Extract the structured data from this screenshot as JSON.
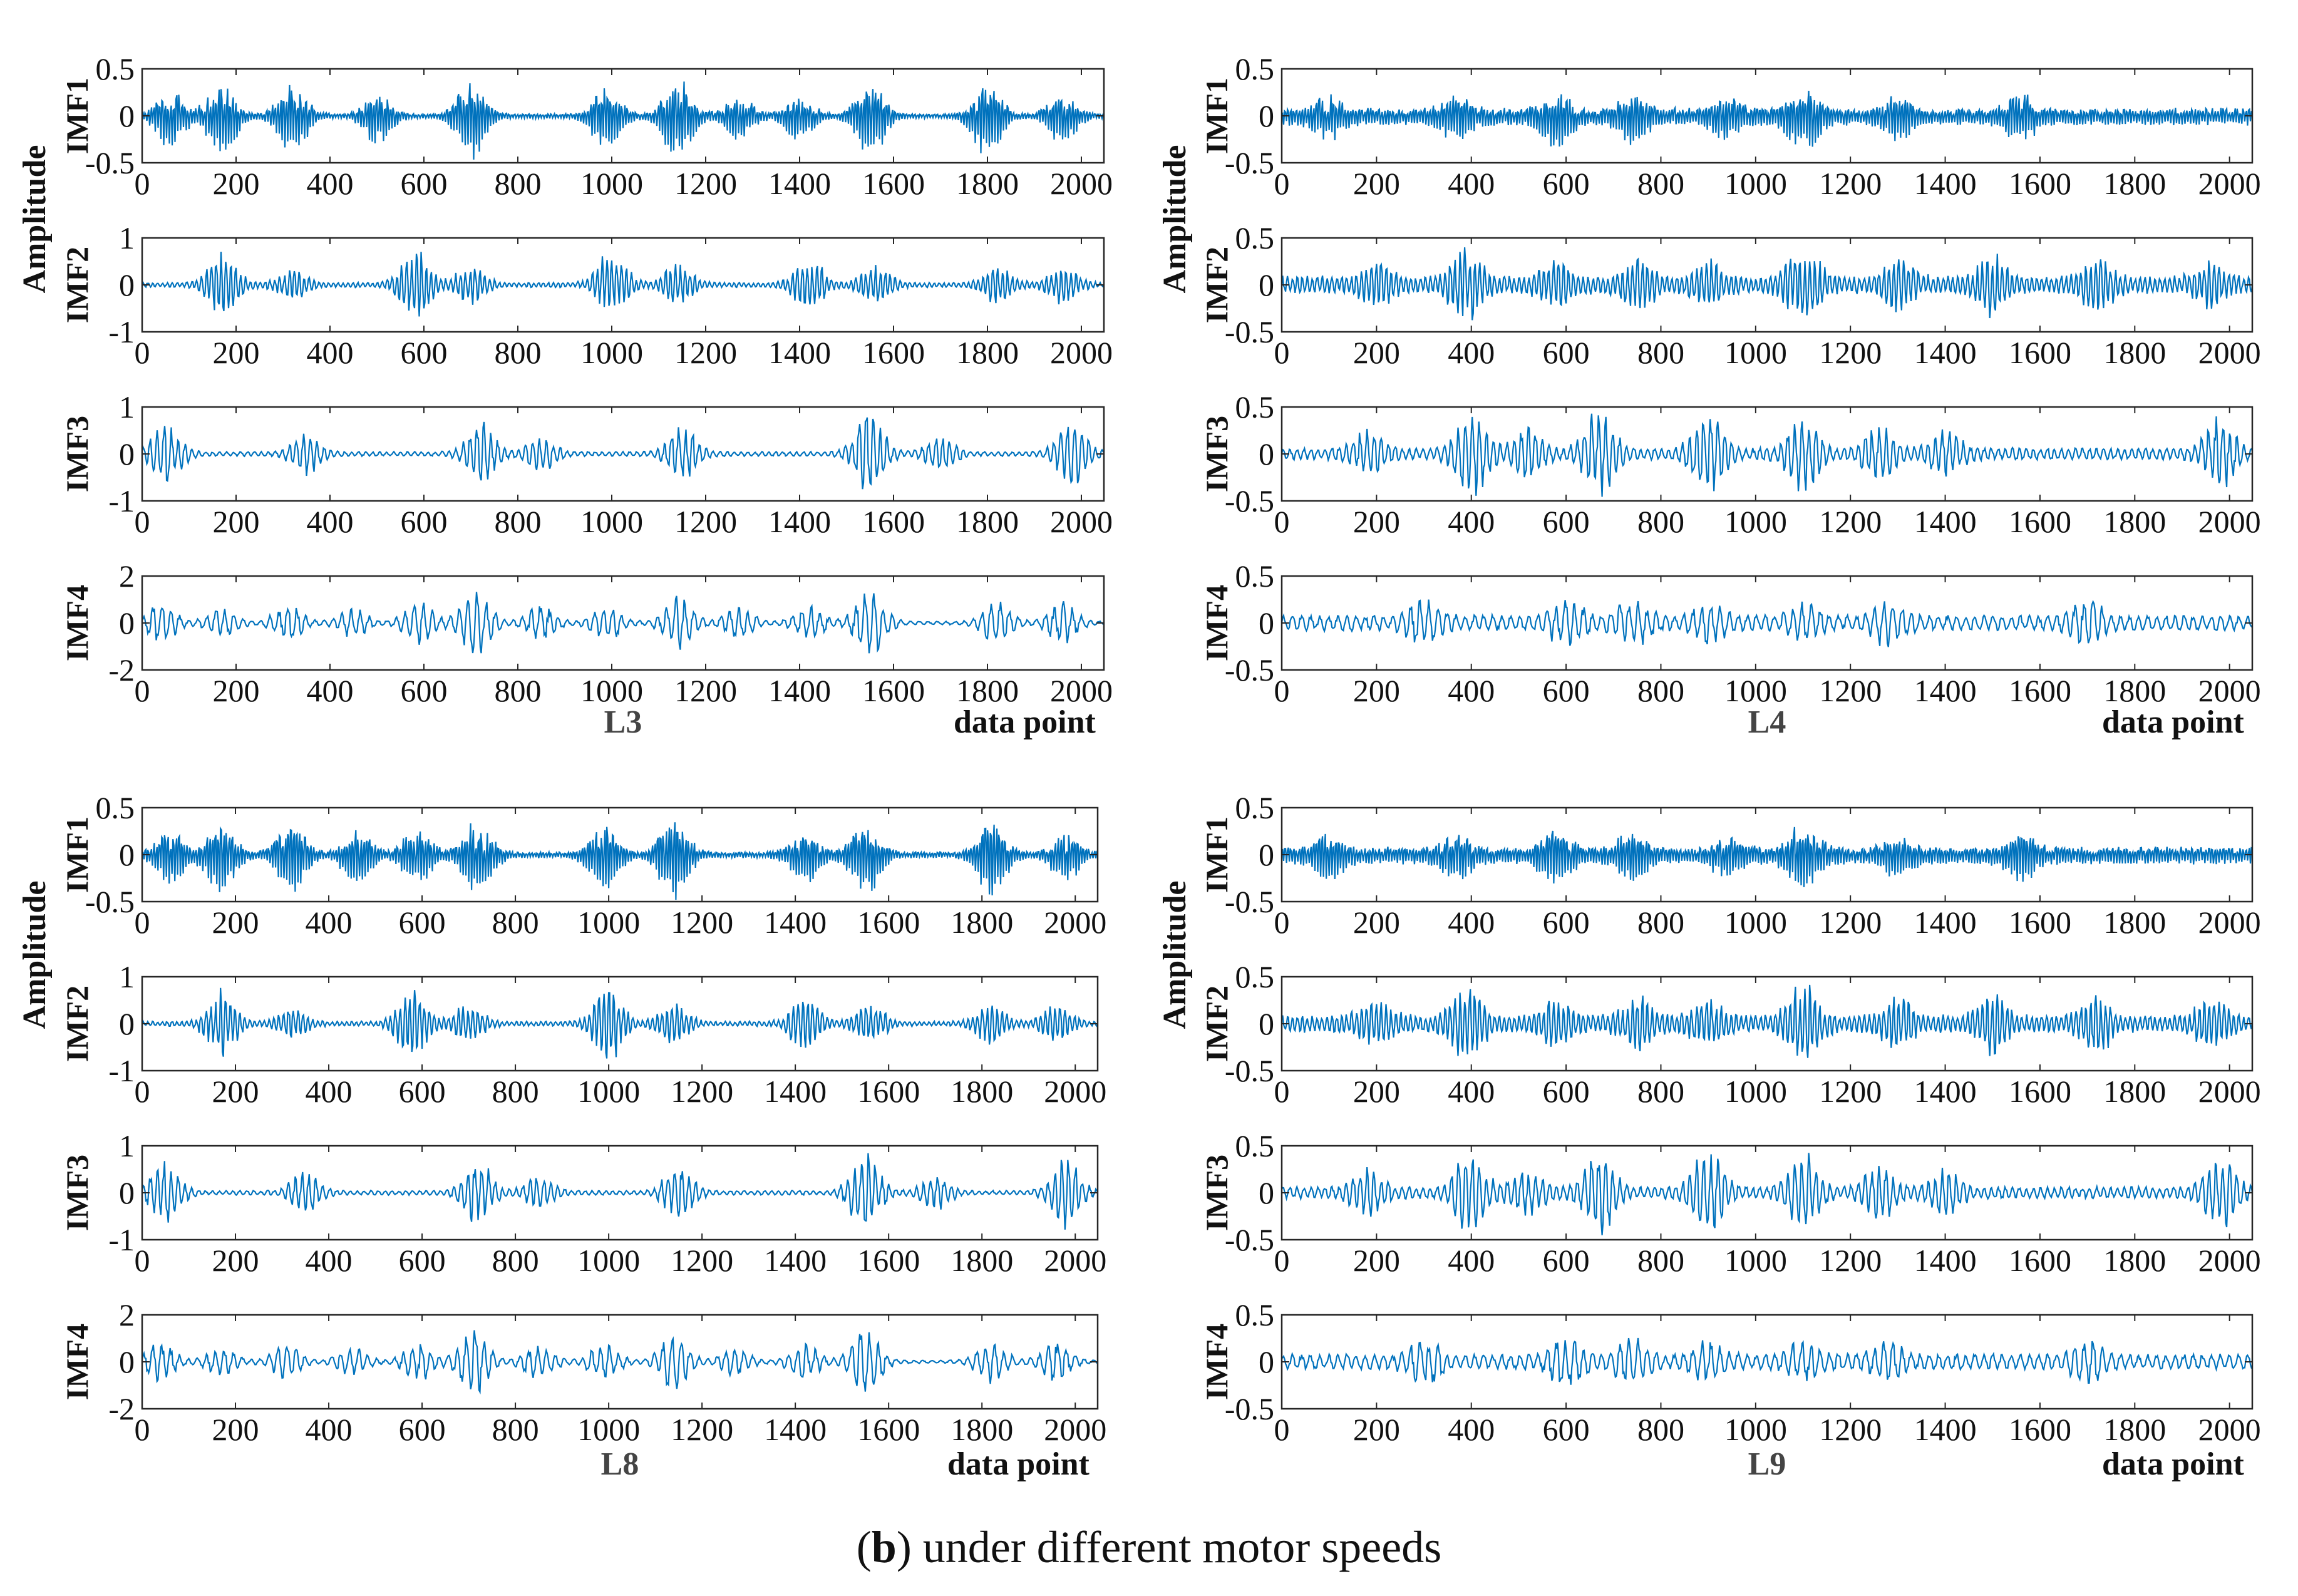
{
  "caption": {
    "tag": "b",
    "text": " under different motor speeds"
  },
  "colors": {
    "signal": "#0072BD",
    "axis": "#262626",
    "background": "#ffffff"
  },
  "chart_data": [
    {
      "type": "line",
      "title": "L3",
      "xlabel": "data point",
      "ylabel": "Amplitude",
      "xlim": [
        0,
        2048
      ],
      "xticks": [
        0,
        200,
        400,
        600,
        800,
        1000,
        1200,
        1400,
        1600,
        1800,
        2000
      ],
      "subplots": [
        {
          "name": "IMF1",
          "ylim": [
            -0.5,
            0.5
          ],
          "yticks": [
            "0.5",
            "0",
            "-0.5"
          ],
          "base": 0.06,
          "amp": 0.48,
          "bursts": [
            [
              60,
              0.7
            ],
            [
              170,
              0.85
            ],
            [
              320,
              0.9
            ],
            [
              500,
              0.6
            ],
            [
              700,
              0.95
            ],
            [
              990,
              0.8
            ],
            [
              1140,
              1.0
            ],
            [
              1270,
              0.5
            ],
            [
              1400,
              0.55
            ],
            [
              1550,
              0.95
            ],
            [
              1800,
              0.9
            ],
            [
              1960,
              0.6
            ]
          ]
        },
        {
          "name": "IMF2",
          "ylim": [
            -1,
            1
          ],
          "yticks": [
            "1",
            "0",
            "-1"
          ],
          "base": 0.07,
          "amp": 0.8,
          "bursts": [
            [
              170,
              0.9
            ],
            [
              320,
              0.4
            ],
            [
              580,
              1.0
            ],
            [
              700,
              0.5
            ],
            [
              1000,
              1.0
            ],
            [
              1140,
              0.5
            ],
            [
              1420,
              0.7
            ],
            [
              1560,
              0.5
            ],
            [
              1820,
              0.5
            ],
            [
              1960,
              0.5
            ]
          ]
        },
        {
          "name": "IMF3",
          "ylim": [
            -1,
            1
          ],
          "yticks": [
            "1",
            "0",
            "-1"
          ],
          "base": 0.06,
          "amp": 0.85,
          "bursts": [
            [
              50,
              0.8
            ],
            [
              350,
              0.5
            ],
            [
              720,
              0.8
            ],
            [
              850,
              0.4
            ],
            [
              1150,
              0.7
            ],
            [
              1550,
              1.0
            ],
            [
              1700,
              0.4
            ],
            [
              1980,
              0.9
            ]
          ]
        },
        {
          "name": "IMF4",
          "ylim": [
            -2,
            2
          ],
          "yticks": [
            "2",
            "0",
            "-2"
          ],
          "base": 0.05,
          "amp": 1.5,
          "bursts": [
            [
              40,
              0.6
            ],
            [
              170,
              0.4
            ],
            [
              310,
              0.5
            ],
            [
              450,
              0.4
            ],
            [
              590,
              0.6
            ],
            [
              710,
              1.0
            ],
            [
              850,
              0.5
            ],
            [
              990,
              0.5
            ],
            [
              1140,
              0.8
            ],
            [
              1270,
              0.4
            ],
            [
              1420,
              0.5
            ],
            [
              1550,
              1.0
            ],
            [
              1820,
              0.6
            ],
            [
              1960,
              0.6
            ]
          ]
        }
      ]
    },
    {
      "type": "line",
      "title": "L4",
      "xlabel": "data point",
      "ylabel": "Amplitude",
      "xlim": [
        0,
        2048
      ],
      "xticks": [
        0,
        200,
        400,
        600,
        800,
        1000,
        1200,
        1400,
        1600,
        1800,
        2000
      ],
      "subplots": [
        {
          "name": "IMF1",
          "ylim": [
            -0.5,
            0.5
          ],
          "yticks": [
            "0.5",
            "0",
            "-0.5"
          ],
          "base": 0.3,
          "amp": 0.35,
          "bursts": [
            [
              100,
              0.5
            ],
            [
              370,
              0.6
            ],
            [
              580,
              0.8
            ],
            [
              740,
              0.6
            ],
            [
              940,
              0.5
            ],
            [
              1100,
              0.9
            ],
            [
              1300,
              0.5
            ],
            [
              1560,
              0.6
            ]
          ]
        },
        {
          "name": "IMF2",
          "ylim": [
            -0.5,
            0.5
          ],
          "yticks": [
            "0.5",
            "0",
            "-0.5"
          ],
          "base": 0.25,
          "amp": 0.4,
          "bursts": [
            [
              200,
              0.5
            ],
            [
              390,
              0.9
            ],
            [
              580,
              0.5
            ],
            [
              750,
              0.6
            ],
            [
              900,
              0.5
            ],
            [
              1100,
              1.0
            ],
            [
              1300,
              0.6
            ],
            [
              1500,
              0.7
            ],
            [
              1720,
              0.6
            ],
            [
              1960,
              0.5
            ]
          ]
        },
        {
          "name": "IMF3",
          "ylim": [
            -0.5,
            0.5
          ],
          "yticks": [
            "0.5",
            "0",
            "-0.5"
          ],
          "base": 0.15,
          "amp": 0.45,
          "bursts": [
            [
              180,
              0.5
            ],
            [
              400,
              1.0
            ],
            [
              520,
              0.5
            ],
            [
              670,
              1.0
            ],
            [
              900,
              1.0
            ],
            [
              1100,
              0.9
            ],
            [
              1260,
              0.6
            ],
            [
              1400,
              0.5
            ],
            [
              1980,
              0.8
            ]
          ]
        },
        {
          "name": "IMF4",
          "ylim": [
            -0.5,
            0.5
          ],
          "yticks": [
            "0.5",
            "0",
            "-0.5"
          ],
          "base": 0.35,
          "amp": 0.25,
          "bursts": [
            [
              300,
              0.8
            ],
            [
              600,
              0.9
            ],
            [
              740,
              0.9
            ],
            [
              900,
              0.7
            ],
            [
              1100,
              0.6
            ],
            [
              1280,
              0.8
            ],
            [
              1700,
              0.8
            ]
          ]
        }
      ]
    },
    {
      "type": "line",
      "title": "L8",
      "xlabel": "data point",
      "ylabel": "Amplitude",
      "xlim": [
        0,
        2048
      ],
      "xticks": [
        0,
        200,
        400,
        600,
        800,
        1000,
        1200,
        1400,
        1600,
        1800,
        2000
      ],
      "subplots": [
        {
          "name": "IMF1",
          "ylim": [
            -0.5,
            0.5
          ],
          "yticks": [
            "0.5",
            "0",
            "-0.5"
          ],
          "base": 0.08,
          "amp": 0.48,
          "bursts": [
            [
              60,
              0.6
            ],
            [
              170,
              0.8
            ],
            [
              320,
              0.8
            ],
            [
              460,
              0.6
            ],
            [
              590,
              0.7
            ],
            [
              720,
              0.9
            ],
            [
              990,
              0.8
            ],
            [
              1140,
              1.0
            ],
            [
              1420,
              0.6
            ],
            [
              1550,
              0.9
            ],
            [
              1820,
              0.9
            ],
            [
              1980,
              0.6
            ]
          ]
        },
        {
          "name": "IMF2",
          "ylim": [
            -1,
            1
          ],
          "yticks": [
            "1",
            "0",
            "-1"
          ],
          "base": 0.07,
          "amp": 0.8,
          "bursts": [
            [
              170,
              0.9
            ],
            [
              320,
              0.4
            ],
            [
              580,
              1.0
            ],
            [
              700,
              0.5
            ],
            [
              1000,
              1.0
            ],
            [
              1140,
              0.5
            ],
            [
              1420,
              0.7
            ],
            [
              1560,
              0.5
            ],
            [
              1820,
              0.5
            ],
            [
              1960,
              0.5
            ]
          ]
        },
        {
          "name": "IMF3",
          "ylim": [
            -1,
            1
          ],
          "yticks": [
            "1",
            "0",
            "-1"
          ],
          "base": 0.06,
          "amp": 0.85,
          "bursts": [
            [
              50,
              0.8
            ],
            [
              350,
              0.5
            ],
            [
              720,
              0.8
            ],
            [
              850,
              0.4
            ],
            [
              1150,
              0.7
            ],
            [
              1550,
              1.0
            ],
            [
              1700,
              0.4
            ],
            [
              1980,
              0.9
            ]
          ]
        },
        {
          "name": "IMF4",
          "ylim": [
            -2,
            2
          ],
          "yticks": [
            "2",
            "0",
            "-2"
          ],
          "base": 0.05,
          "amp": 1.5,
          "bursts": [
            [
              40,
              0.6
            ],
            [
              170,
              0.4
            ],
            [
              310,
              0.5
            ],
            [
              450,
              0.4
            ],
            [
              590,
              0.6
            ],
            [
              710,
              1.0
            ],
            [
              850,
              0.5
            ],
            [
              990,
              0.5
            ],
            [
              1140,
              0.8
            ],
            [
              1270,
              0.4
            ],
            [
              1420,
              0.5
            ],
            [
              1550,
              1.0
            ],
            [
              1820,
              0.6
            ],
            [
              1960,
              0.6
            ]
          ]
        }
      ]
    },
    {
      "type": "line",
      "title": "L9",
      "xlabel": "data point",
      "ylabel": "Amplitude",
      "xlim": [
        0,
        2048
      ],
      "xticks": [
        0,
        200,
        400,
        600,
        800,
        1000,
        1200,
        1400,
        1600,
        1800,
        2000
      ],
      "subplots": [
        {
          "name": "IMF1",
          "ylim": [
            -0.5,
            0.5
          ],
          "yticks": [
            "0.5",
            "0",
            "-0.5"
          ],
          "base": 0.3,
          "amp": 0.35,
          "bursts": [
            [
              100,
              0.5
            ],
            [
              370,
              0.6
            ],
            [
              580,
              0.8
            ],
            [
              740,
              0.6
            ],
            [
              940,
              0.5
            ],
            [
              1100,
              0.9
            ],
            [
              1300,
              0.5
            ],
            [
              1560,
              0.6
            ]
          ]
        },
        {
          "name": "IMF2",
          "ylim": [
            -0.5,
            0.5
          ],
          "yticks": [
            "0.5",
            "0",
            "-0.5"
          ],
          "base": 0.25,
          "amp": 0.4,
          "bursts": [
            [
              200,
              0.5
            ],
            [
              390,
              0.9
            ],
            [
              580,
              0.5
            ],
            [
              750,
              0.6
            ],
            [
              900,
              0.5
            ],
            [
              1100,
              1.0
            ],
            [
              1300,
              0.6
            ],
            [
              1500,
              0.7
            ],
            [
              1720,
              0.6
            ],
            [
              1960,
              0.5
            ]
          ]
        },
        {
          "name": "IMF3",
          "ylim": [
            -0.5,
            0.5
          ],
          "yticks": [
            "0.5",
            "0",
            "-0.5"
          ],
          "base": 0.15,
          "amp": 0.45,
          "bursts": [
            [
              180,
              0.5
            ],
            [
              400,
              1.0
            ],
            [
              520,
              0.5
            ],
            [
              670,
              1.0
            ],
            [
              900,
              1.0
            ],
            [
              1100,
              0.9
            ],
            [
              1260,
              0.6
            ],
            [
              1400,
              0.5
            ],
            [
              1980,
              0.8
            ]
          ]
        },
        {
          "name": "IMF4",
          "ylim": [
            -0.5,
            0.5
          ],
          "yticks": [
            "0.5",
            "0",
            "-0.5"
          ],
          "base": 0.35,
          "amp": 0.25,
          "bursts": [
            [
              300,
              0.8
            ],
            [
              600,
              0.9
            ],
            [
              740,
              0.9
            ],
            [
              900,
              0.7
            ],
            [
              1100,
              0.6
            ],
            [
              1280,
              0.8
            ],
            [
              1700,
              0.8
            ]
          ]
        }
      ]
    }
  ]
}
